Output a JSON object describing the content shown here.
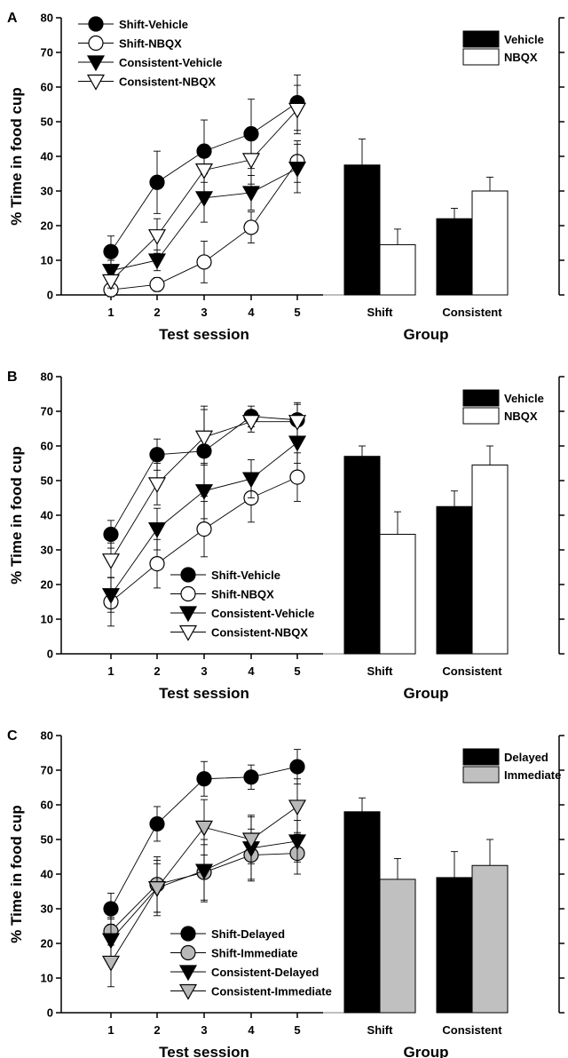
{
  "chart_data": [
    {
      "panel_label": "A",
      "type": "line",
      "xlabel": "Test session",
      "ylabel": "% Time in food cup",
      "ylim": [
        0,
        80
      ],
      "yticks": [
        "0",
        "10",
        "20",
        "30",
        "40",
        "50",
        "60",
        "70",
        "80"
      ],
      "x": [
        "1",
        "2",
        "3",
        "4",
        "5"
      ],
      "legend_position": "top-left",
      "series": [
        {
          "name": "Shift-Vehicle",
          "marker": "circle",
          "fill": "#000000",
          "values": [
            12.5,
            32.5,
            41.5,
            46.5,
            55.5
          ],
          "errors": [
            4.5,
            9,
            9,
            10,
            8
          ]
        },
        {
          "name": "Shift-NBQX",
          "marker": "circle",
          "fill": "#ffffff",
          "values": [
            1.5,
            3,
            9.5,
            19.5,
            38.5
          ],
          "errors": [
            2,
            2,
            6,
            4.5,
            6
          ]
        },
        {
          "name": "Consistent-Vehicle",
          "marker": "triangle-down",
          "fill": "#000000",
          "values": [
            7,
            10,
            28,
            29.5,
            36.5
          ],
          "errors": [
            3,
            3,
            7,
            5,
            7
          ]
        },
        {
          "name": "Consistent-NBQX",
          "marker": "triangle-down",
          "fill": "#ffffff",
          "values": [
            4,
            17,
            36,
            39,
            53.5
          ],
          "errors": [
            2,
            5,
            7,
            7,
            7
          ]
        }
      ],
      "bars": {
        "type": "bar",
        "xlabel": "Group",
        "categories": [
          "Shift",
          "Consistent"
        ],
        "legend_position": "top-right",
        "series": [
          {
            "name": "Vehicle",
            "color": "#000000",
            "values": [
              37.5,
              22
            ],
            "errors": [
              7.5,
              3
            ]
          },
          {
            "name": "NBQX",
            "color": "#ffffff",
            "values": [
              14.5,
              30
            ],
            "errors": [
              4.5,
              4
            ]
          }
        ]
      }
    },
    {
      "panel_label": "B",
      "type": "line",
      "xlabel": "Test session",
      "ylabel": "% Time in food cup",
      "ylim": [
        0,
        80
      ],
      "yticks": [
        "0",
        "10",
        "20",
        "30",
        "40",
        "50",
        "60",
        "70",
        "80"
      ],
      "x": [
        "1",
        "2",
        "3",
        "4",
        "5"
      ],
      "legend_position": "bottom-center",
      "series": [
        {
          "name": "Shift-Vehicle",
          "marker": "circle",
          "fill": "#000000",
          "values": [
            34.5,
            57.5,
            58.5,
            68.5,
            67.5
          ],
          "errors": [
            4,
            4.5,
            13,
            3,
            5
          ]
        },
        {
          "name": "Shift-NBQX",
          "marker": "circle",
          "fill": "#ffffff",
          "values": [
            15,
            26,
            36,
            45,
            51
          ],
          "errors": [
            7,
            7,
            8,
            7,
            7
          ]
        },
        {
          "name": "Consistent-Vehicle",
          "marker": "triangle-down",
          "fill": "#000000",
          "values": [
            17,
            36,
            47,
            50.5,
            61
          ],
          "errors": [
            5,
            6,
            8,
            5.5,
            6
          ]
        },
        {
          "name": "Consistent-NBQX",
          "marker": "triangle-down",
          "fill": "#ffffff",
          "values": [
            27,
            49,
            62.5,
            67,
            67
          ],
          "errors": [
            5,
            6,
            8,
            3,
            5
          ]
        }
      ],
      "bars": {
        "type": "bar",
        "xlabel": "Group",
        "categories": [
          "Shift",
          "Consistent"
        ],
        "legend_position": "top-right",
        "series": [
          {
            "name": "Vehicle",
            "color": "#000000",
            "values": [
              57,
              42.5
            ],
            "errors": [
              3,
              4.5
            ]
          },
          {
            "name": "NBQX",
            "color": "#ffffff",
            "values": [
              34.5,
              54.5
            ],
            "errors": [
              6.5,
              5.5
            ]
          }
        ]
      }
    },
    {
      "panel_label": "C",
      "type": "line",
      "xlabel": "Test session",
      "ylabel": "% Time in food cup",
      "ylim": [
        0,
        80
      ],
      "yticks": [
        "0",
        "10",
        "20",
        "30",
        "40",
        "50",
        "60",
        "70",
        "80"
      ],
      "x": [
        "1",
        "2",
        "3",
        "4",
        "5"
      ],
      "legend_position": "bottom-center",
      "series": [
        {
          "name": "Shift-Delayed",
          "marker": "circle",
          "fill": "#000000",
          "values": [
            30,
            54.5,
            67.5,
            68,
            71
          ],
          "errors": [
            4.5,
            5,
            5,
            3.5,
            5
          ]
        },
        {
          "name": "Shift-Immediate",
          "marker": "circle",
          "fill": "#b8b8b8",
          "values": [
            23.5,
            37,
            40.5,
            45.5,
            46
          ],
          "errors": [
            4,
            8,
            8,
            7.5,
            6
          ]
        },
        {
          "name": "Consistent-Delayed",
          "marker": "triangle-down",
          "fill": "#000000",
          "values": [
            21,
            36,
            41,
            47.5,
            49.5
          ],
          "errors": [
            6,
            8,
            9,
            9,
            6
          ]
        },
        {
          "name": "Consistent-Immediate",
          "marker": "triangle-down",
          "fill": "#b8b8b8",
          "values": [
            14.5,
            36,
            53.5,
            50,
            59.5
          ],
          "errors": [
            7,
            7,
            8,
            7,
            8
          ]
        }
      ],
      "bars": {
        "type": "bar",
        "xlabel": "Group",
        "categories": [
          "Shift",
          "Consistent"
        ],
        "legend_position": "top-right",
        "series": [
          {
            "name": "Delayed",
            "color": "#000000",
            "values": [
              58,
              39
            ],
            "errors": [
              4,
              7.5
            ]
          },
          {
            "name": "Immediate",
            "color": "#c0c0c0",
            "values": [
              38.5,
              42.5
            ],
            "errors": [
              6,
              7.5
            ]
          }
        ]
      }
    }
  ]
}
